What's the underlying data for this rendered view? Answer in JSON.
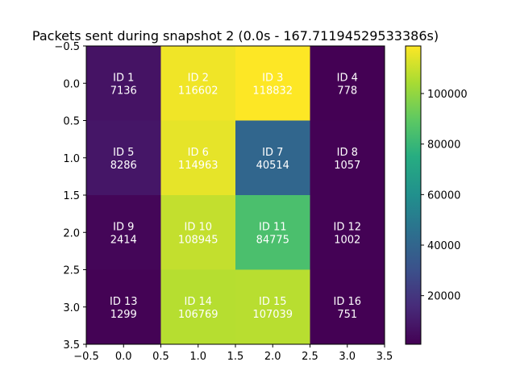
{
  "chart_data": {
    "type": "heatmap",
    "title": "Packets sent during snapshot 2 (0.0s - 167.71194529533386s)",
    "xlabel": "",
    "ylabel": "",
    "rows": 4,
    "cols": 4,
    "cells": [
      {
        "row": 0,
        "col": 0,
        "id": "ID 1",
        "value": 7136
      },
      {
        "row": 0,
        "col": 1,
        "id": "ID 2",
        "value": 116602
      },
      {
        "row": 0,
        "col": 2,
        "id": "ID 3",
        "value": 118832
      },
      {
        "row": 0,
        "col": 3,
        "id": "ID 4",
        "value": 778
      },
      {
        "row": 1,
        "col": 0,
        "id": "ID 5",
        "value": 8286
      },
      {
        "row": 1,
        "col": 1,
        "id": "ID 6",
        "value": 114963
      },
      {
        "row": 1,
        "col": 2,
        "id": "ID 7",
        "value": 40514
      },
      {
        "row": 1,
        "col": 3,
        "id": "ID 8",
        "value": 1057
      },
      {
        "row": 2,
        "col": 0,
        "id": "ID 9",
        "value": 2414
      },
      {
        "row": 2,
        "col": 1,
        "id": "ID 10",
        "value": 108945
      },
      {
        "row": 2,
        "col": 2,
        "id": "ID 11",
        "value": 84775
      },
      {
        "row": 2,
        "col": 3,
        "id": "ID 12",
        "value": 1002
      },
      {
        "row": 3,
        "col": 0,
        "id": "ID 13",
        "value": 1299
      },
      {
        "row": 3,
        "col": 1,
        "id": "ID 14",
        "value": 106769
      },
      {
        "row": 3,
        "col": 2,
        "id": "ID 15",
        "value": 107039
      },
      {
        "row": 3,
        "col": 3,
        "id": "ID 16",
        "value": 751
      }
    ],
    "x_ticks": [
      "−0.5",
      "0.0",
      "0.5",
      "1.0",
      "1.5",
      "2.0",
      "2.5",
      "3.0",
      "3.5"
    ],
    "y_ticks": [
      "−0.5",
      "0.0",
      "0.5",
      "1.0",
      "1.5",
      "2.0",
      "2.5",
      "3.0",
      "3.5"
    ],
    "xlim": [
      -0.5,
      3.5
    ],
    "ylim": [
      3.5,
      -0.5
    ],
    "colorbar": {
      "min": 751,
      "max": 118832,
      "ticks": [
        20000,
        40000,
        60000,
        80000,
        100000
      ],
      "tick_labels": [
        "20000",
        "40000",
        "60000",
        "80000",
        "100000"
      ],
      "colormap": "viridis"
    },
    "grid": false
  }
}
